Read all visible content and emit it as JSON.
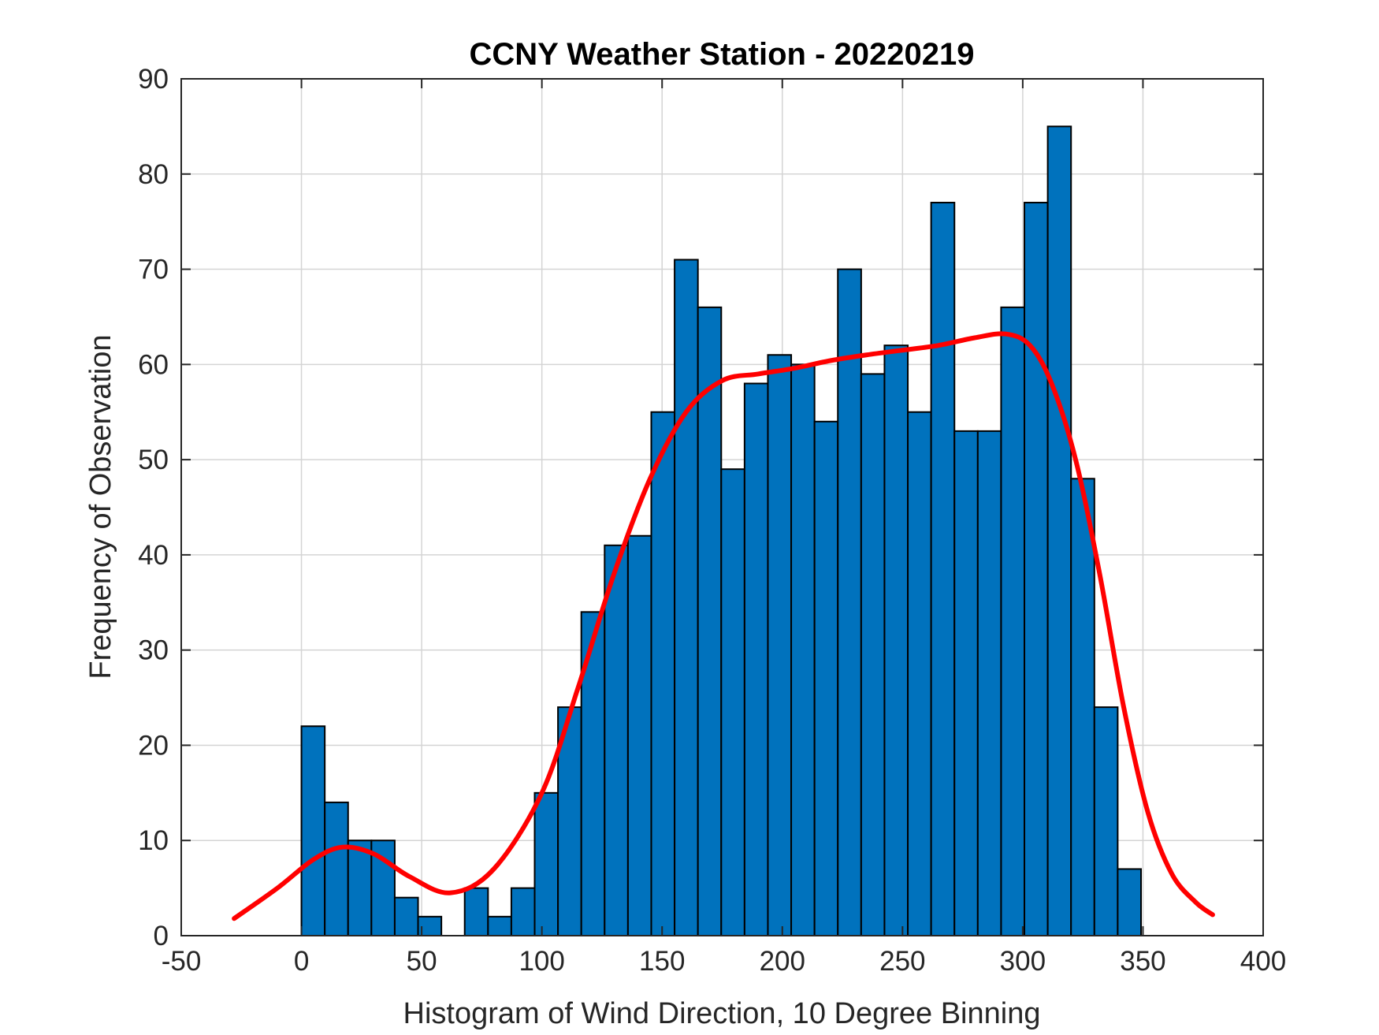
{
  "chart_data": {
    "type": "bar",
    "title": "CCNY Weather Station - 20220219",
    "xlabel": "Histogram of Wind Direction, 10 Degree Binning",
    "ylabel": "Frequency of Observation",
    "xlim": [
      -50,
      400
    ],
    "ylim": [
      0,
      90
    ],
    "xticks": [
      -50,
      0,
      50,
      100,
      150,
      200,
      250,
      300,
      350,
      400
    ],
    "yticks": [
      0,
      10,
      20,
      30,
      40,
      50,
      60,
      70,
      80,
      90
    ],
    "grid": true,
    "bar_color": "#0072BD",
    "bar_edge_color": "#000000",
    "curve_color": "#FF0000",
    "series": [
      {
        "name": "histogram",
        "bin_width": 9.7,
        "bin_starts": [
          0,
          9.7,
          19.4,
          29.1,
          38.8,
          48.5,
          58.2,
          67.9,
          77.6,
          87.3,
          97.0,
          106.7,
          116.4,
          126.1,
          135.8,
          145.5,
          155.2,
          164.9,
          174.6,
          184.3,
          194.0,
          203.7,
          213.4,
          223.1,
          232.8,
          242.5,
          252.2,
          261.9,
          271.6,
          281.3,
          291.0,
          300.7,
          310.4,
          320.1,
          329.8,
          339.5
        ],
        "values": [
          22,
          14,
          10,
          10,
          4,
          2,
          0,
          5,
          2,
          5,
          15,
          24,
          34,
          41,
          42,
          55,
          71,
          66,
          49,
          58,
          61,
          60,
          54,
          70,
          59,
          62,
          55,
          77,
          53,
          53,
          66,
          77,
          85,
          48,
          24,
          7
        ]
      },
      {
        "name": "density fit",
        "x": [
          -28,
          -10,
          5,
          17,
          30,
          45,
          62,
          80,
          100,
          115,
          130,
          145,
          160,
          175,
          190,
          205,
          220,
          235,
          250,
          265,
          280,
          293,
          303,
          312,
          322,
          332,
          342,
          352,
          362,
          372,
          379
        ],
        "values": [
          1.8,
          5.0,
          8.0,
          9.3,
          8.6,
          6.2,
          4.5,
          7.0,
          15.0,
          26.0,
          38.0,
          48.0,
          55.0,
          58.3,
          59.0,
          59.6,
          60.4,
          61.0,
          61.5,
          62.0,
          62.8,
          63.2,
          62.0,
          58.0,
          50.0,
          38.0,
          24.0,
          13.0,
          6.5,
          3.5,
          2.2
        ]
      }
    ]
  }
}
